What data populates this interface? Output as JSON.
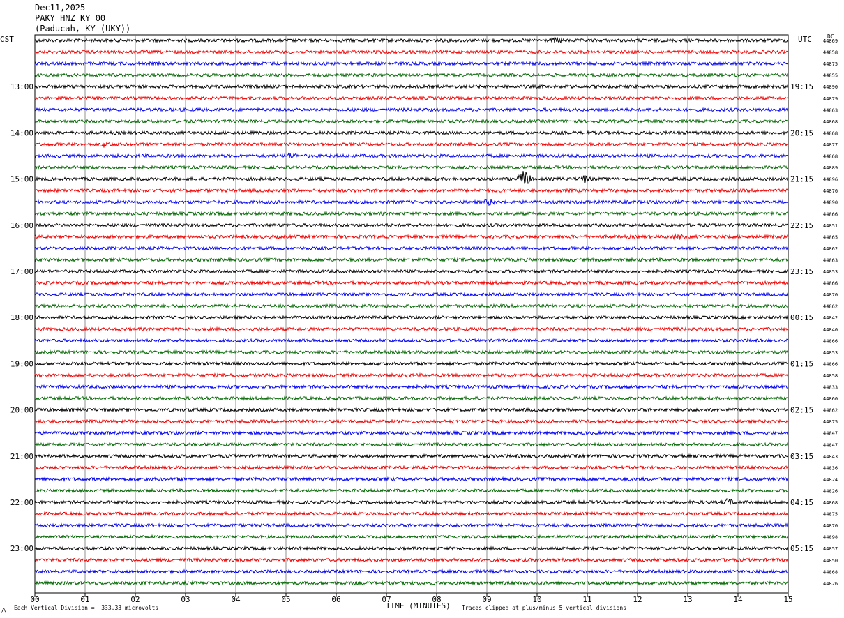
{
  "header": {
    "date": "Dec11,2025",
    "station": "PAKY HNZ KY 00",
    "location": "(Paducah, KY (UKY))"
  },
  "labels": {
    "left_zone": "CST",
    "right_zone": "UTC",
    "dc": "DC"
  },
  "footer": {
    "scale": "Each Vertical Division =  333.33 microvolts",
    "clip": "Traces clipped at plus/minus 5 vertical divisions",
    "mark": "⋀"
  },
  "chart_data": {
    "type": "line",
    "title": "",
    "xlabel": "TIME (MINUTES)",
    "xlim": [
      0,
      15
    ],
    "x_ticks": [
      "00",
      "01",
      "02",
      "03",
      "04",
      "05",
      "06",
      "07",
      "08",
      "09",
      "10",
      "11",
      "12",
      "13",
      "14",
      "15"
    ],
    "traces_per_hour": 4,
    "trace_colors": [
      "#000000",
      "#ee0000",
      "#0000ee",
      "#006600"
    ],
    "left_hour_labels": [
      "13:00",
      "14:00",
      "15:00",
      "16:00",
      "17:00",
      "18:00",
      "19:00",
      "20:00",
      "21:00",
      "22:00",
      "23:00"
    ],
    "right_hour_labels": [
      "19:15",
      "20:15",
      "21:15",
      "22:15",
      "23:15",
      "00:15",
      "01:15",
      "02:15",
      "03:15",
      "04:15",
      "05:15"
    ],
    "dc_offsets": [
      "44869",
      "44858",
      "44875",
      "44855",
      "44890",
      "44879",
      "44863",
      "44868",
      "44868",
      "44877",
      "44868",
      "44889",
      "44896",
      "44876",
      "44890",
      "44866",
      "44851",
      "44865",
      "44862",
      "44863",
      "44853",
      "44866",
      "44870",
      "44862",
      "44842",
      "44840",
      "44866",
      "44853",
      "44866",
      "44858",
      "44833",
      "44860",
      "44862",
      "44875",
      "44847",
      "44847",
      "44843",
      "44836",
      "44824",
      "44826",
      "44868",
      "44875",
      "44870",
      "44898",
      "44857",
      "44850",
      "44868",
      "44826"
    ],
    "events": [
      {
        "trace": 0,
        "minute": 10.4,
        "amp": 3
      },
      {
        "trace": 9,
        "minute": 1.4,
        "amp": 3
      },
      {
        "trace": 10,
        "minute": 5.1,
        "amp": 3
      },
      {
        "trace": 12,
        "minute": 9.75,
        "amp": 12
      },
      {
        "trace": 12,
        "minute": 10.95,
        "amp": 4
      },
      {
        "trace": 14,
        "minute": 9.05,
        "amp": 3
      },
      {
        "trace": 17,
        "minute": 12.8,
        "amp": 3
      },
      {
        "trace": 40,
        "minute": 13.8,
        "amp": 4
      }
    ]
  }
}
